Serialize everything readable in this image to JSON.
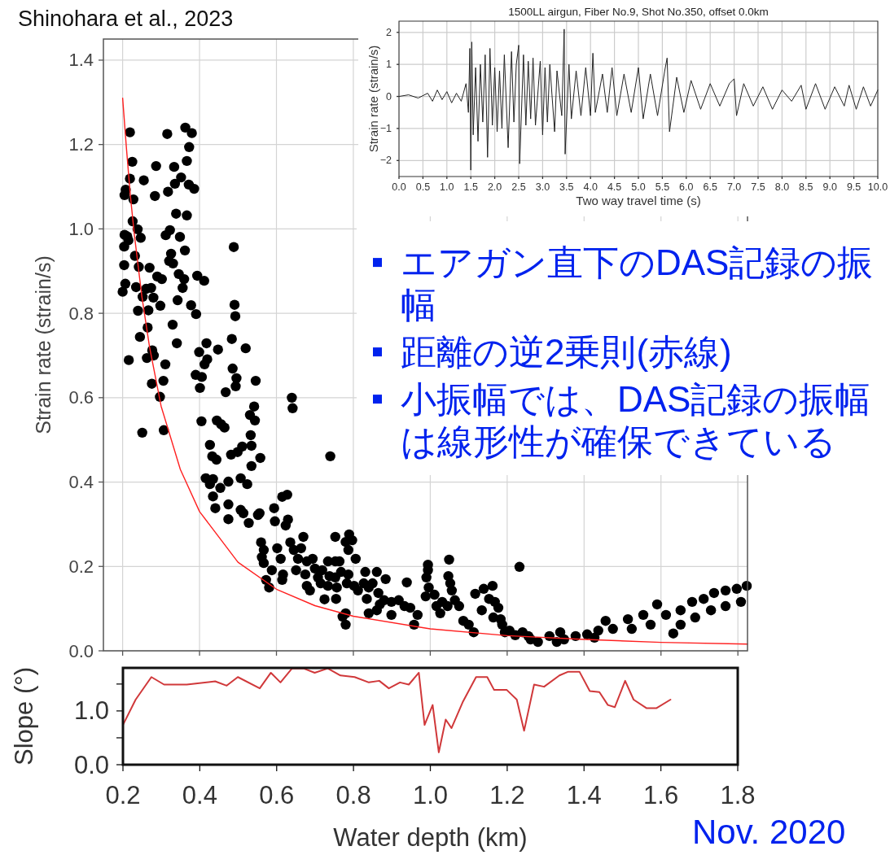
{
  "chart_data": [
    {
      "type": "scatter",
      "ylabel": "Strain rate (strain/s)",
      "xlim": [
        0.15,
        1.825
      ],
      "ylim": [
        0,
        1.45
      ],
      "xticks": [
        0.2,
        0.4,
        0.6,
        0.8,
        1,
        1.2,
        1.4,
        1.6,
        1.8
      ],
      "yticks": [
        {
          "value": 0,
          "label": "0.0"
        },
        0.2,
        0.4,
        0.6,
        0.8,
        {
          "value": 1,
          "label": "1.0"
        },
        1.2,
        1.4
      ],
      "tick_labels": "y",
      "grid": true,
      "annotations": [
        "Shinohara et al., 2023",
        "エアガン直下のDAS記録の振幅",
        "距離の逆2乗則(赤線)",
        "小振幅では、DAS記録の振幅は線形性が確保できている"
      ],
      "series": [
        {
          "marker": "circle",
          "color": "#000000",
          "x": [
            0.219,
            0.316,
            0.363,
            0.38,
            0.373,
            0.225,
            0.287,
            0.334,
            0.367,
            0.219,
            0.255,
            0.352,
            0.336,
            0.372,
            0.386,
            0.208,
            0.205,
            0.318,
            0.284,
            0.228,
            0.226,
            0.239,
            0.339,
            0.367,
            0.205,
            0.212,
            0.247,
            0.312,
            0.323,
            0.349,
            0.204,
            0.215,
            0.489,
            0.326,
            0.362,
            0.232,
            0.204,
            0.242,
            0.27,
            0.321,
            0.331,
            0.346,
            0.36,
            0.394,
            0.412,
            0.29,
            0.302,
            0.207,
            0.2,
            0.235,
            0.261,
            0.274,
            0.356,
            0.252,
            0.28,
            0.24,
            0.267,
            0.298,
            0.343,
            0.378,
            0.391,
            0.491,
            0.493,
            0.265,
            0.245,
            0.33,
            0.341,
            0.484,
            0.418,
            0.448,
            0.52,
            0.277,
            0.281,
            0.263,
            0.216,
            0.399,
            0.42,
            0.413,
            0.311,
            0.39,
            0.406,
            0.486,
            0.496,
            0.494,
            0.546,
            0.401,
            0.468,
            0.306,
            0.276,
            0.297,
            0.64,
            0.642,
            0.542,
            0.531,
            0.544,
            0.405,
            0.445,
            0.456,
            0.465,
            0.307,
            0.251,
            0.533,
            0.74,
            0.427,
            0.433,
            0.444,
            0.482,
            0.499,
            0.511,
            0.535,
            0.558,
            0.535,
            0.416,
            0.435,
            0.427,
            0.454,
            0.475,
            0.507,
            0.524,
            0.435,
            0.441,
            0.475,
            0.475,
            0.507,
            0.514,
            0.528,
            0.552,
            0.556,
            0.594,
            0.615,
            0.628,
            0.596,
            0.63,
            0.624,
            0.56,
            0.567,
            0.562,
            0.567,
            0.588,
            0.573,
            0.581,
            0.602,
            0.611,
            0.617,
            0.615,
            0.636,
            0.645,
            0.664,
            0.67,
            0.656,
            0.679,
            0.651,
            0.675,
            0.679,
            0.694,
            0.7,
            0.708,
            0.715,
            0.687,
            0.734,
            0.753,
            0.764,
            0.719,
            0.738,
            0.734,
            0.753,
            0.753,
            0.78,
            0.789,
            0.797,
            0.787,
            0.806,
            0.768,
            0.787,
            0.757,
            0.725,
            0.755,
            0.783,
            0.802,
            0.812,
            0.831,
            0.827,
            0.84,
            0.861,
            0.85,
            0.865,
            0.835,
            0.869,
            0.884,
            0.88,
            0.899,
            0.918,
            0.939,
            0.933,
            0.948,
            0.899,
            0.84,
            0.861,
            0.78,
            0.78,
            0.772,
            0.967,
            0.958,
            0.988,
            0.994,
            0.994,
            0.99,
            0.996,
            1.011,
            1.016,
            1.031,
            1.026,
            1.045,
            1.047,
            1.052,
            1.056,
            1.049,
            1.064,
            1.075,
            1.086,
            1.1,
            1.113,
            1.117,
            1.139,
            1.162,
            1.153,
            1.168,
            1.177,
            1.134,
            1.164,
            1.183,
            1.187,
            1.194,
            1.232,
            1.206,
            1.221,
            1.24,
            1.255,
            1.28,
            1.31,
            1.338,
            1.348,
            1.378,
            1.408,
            1.437,
            1.456,
            1.475,
            1.514,
            1.554,
            1.59,
            1.632,
            1.613,
            1.651,
            1.681,
            1.711,
            1.738,
            1.768,
            1.797,
            1.823,
            1.73,
            1.768,
            1.808,
            1.689,
            1.651,
            1.573,
            1.524,
            1.427,
            1.329,
            1.261
          ],
          "values": [
            1.229,
            1.225,
            1.24,
            1.227,
            1.194,
            1.159,
            1.149,
            1.147,
            1.161,
            1.119,
            1.115,
            1.122,
            1.107,
            1.105,
            1.095,
            1.093,
            1.08,
            1.088,
            1.078,
            1.07,
            1.018,
            0.999,
            1.036,
            1.032,
            0.986,
            0.982,
            0.979,
            0.985,
            0.997,
            0.981,
            0.958,
            0.973,
            0.957,
            0.941,
            0.949,
            0.936,
            0.914,
            0.91,
            0.908,
            0.924,
            0.918,
            0.893,
            0.881,
            0.889,
            0.877,
            0.887,
            0.881,
            0.87,
            0.851,
            0.862,
            0.858,
            0.86,
            0.86,
            0.839,
            0.837,
            0.806,
            0.807,
            0.818,
            0.831,
            0.819,
            0.798,
            0.82,
            0.793,
            0.766,
            0.744,
            0.773,
            0.729,
            0.739,
            0.729,
            0.714,
            0.717,
            0.712,
            0.7,
            0.694,
            0.689,
            0.708,
            0.691,
            0.679,
            0.679,
            0.654,
            0.649,
            0.669,
            0.646,
            0.627,
            0.64,
            0.623,
            0.613,
            0.64,
            0.633,
            0.602,
            0.6,
            0.575,
            0.579,
            0.559,
            0.546,
            0.544,
            0.546,
            0.537,
            0.529,
            0.523,
            0.517,
            0.511,
            0.461,
            0.488,
            0.461,
            0.453,
            0.465,
            0.471,
            0.484,
            0.486,
            0.457,
            0.438,
            0.409,
            0.407,
            0.395,
            0.386,
            0.401,
            0.409,
            0.395,
            0.366,
            0.338,
            0.347,
            0.312,
            0.334,
            0.326,
            0.303,
            0.322,
            0.326,
            0.338,
            0.365,
            0.37,
            0.307,
            0.311,
            0.297,
            0.257,
            0.239,
            0.222,
            0.208,
            0.191,
            0.168,
            0.15,
            0.243,
            0.218,
            0.181,
            0.168,
            0.257,
            0.239,
            0.243,
            0.27,
            0.218,
            0.212,
            0.191,
            0.181,
            0.154,
            0.218,
            0.195,
            0.174,
            0.16,
            0.143,
            0.212,
            0.212,
            0.212,
            0.191,
            0.177,
            0.154,
            0.174,
            0.27,
            0.258,
            0.276,
            0.262,
            0.239,
            0.218,
            0.187,
            0.181,
            0.15,
            0.122,
            0.123,
            0.16,
            0.154,
            0.143,
            0.187,
            0.16,
            0.15,
            0.187,
            0.16,
            0.137,
            0.123,
            0.11,
            0.17,
            0.12,
            0.116,
            0.12,
            0.162,
            0.106,
            0.102,
            0.085,
            0.089,
            0.096,
            0.089,
            0.062,
            0.081,
            0.085,
            0.062,
            0.129,
            0.204,
            0.191,
            0.174,
            0.15,
            0.133,
            0.106,
            0.116,
            0.089,
            0.106,
            0.177,
            0.16,
            0.143,
            0.216,
            0.12,
            0.106,
            0.071,
            0.062,
            0.044,
            0.135,
            0.147,
            0.154,
            0.123,
            0.116,
            0.102,
            0.096,
            0.079,
            0.075,
            0.062,
            0.044,
            0.199,
            0.048,
            0.037,
            0.044,
            0.035,
            0.021,
            0.035,
            0.044,
            0.027,
            0.035,
            0.039,
            0.048,
            0.071,
            0.052,
            0.075,
            0.085,
            0.11,
            0.041,
            0.085,
            0.096,
            0.116,
            0.123,
            0.137,
            0.143,
            0.147,
            0.154,
            0.096,
            0.106,
            0.116,
            0.079,
            0.062,
            0.062,
            0.052,
            0.031,
            0.021,
            0.027
          ]
        },
        {
          "type": "line",
          "color": "#ff2020",
          "x": [
            0.2,
            0.21,
            0.22,
            0.23,
            0.25,
            0.27,
            0.3,
            0.35,
            0.4,
            0.5,
            0.6,
            0.7,
            0.8,
            1.0,
            1.2,
            1.4,
            1.6,
            1.825
          ],
          "values": [
            1.31,
            1.19,
            1.08,
            0.99,
            0.84,
            0.72,
            0.58,
            0.43,
            0.33,
            0.21,
            0.146,
            0.107,
            0.082,
            0.052,
            0.036,
            0.027,
            0.02,
            0.016
          ]
        }
      ]
    },
    {
      "type": "line",
      "title": "1500LL airgun, Fiber No.9, Shot No.350, offset 0.0km",
      "xlabel": "Two way travel time (s)",
      "ylabel": "Strain rate (strain/s)",
      "xlim": [
        0,
        10
      ],
      "ylim": [
        -2.5,
        2.35
      ],
      "xticks": [
        {
          "value": 0,
          "label": "0.0"
        },
        0.5,
        {
          "value": 1,
          "label": "1.0"
        },
        1.5,
        {
          "value": 2,
          "label": "2.0"
        },
        2.5,
        {
          "value": 3,
          "label": "3.0"
        },
        3.5,
        {
          "value": 4,
          "label": "4.0"
        },
        4.5,
        {
          "value": 5,
          "label": "5.0"
        },
        5.5,
        {
          "value": 6,
          "label": "6.0"
        },
        6.5,
        {
          "value": 7,
          "label": "7.0"
        },
        7.5,
        {
          "value": 8,
          "label": "8.0"
        },
        8.5,
        {
          "value": 9,
          "label": "9.0"
        },
        9.5,
        {
          "value": 10,
          "label": "10.0"
        }
      ],
      "yticks": [
        {
          "value": -2,
          "label": "−2"
        },
        {
          "value": -1,
          "label": "−1"
        },
        0,
        1,
        2
      ],
      "grid": true,
      "series": [
        {
          "color": "#222222",
          "x": [
            0.0,
            0.2,
            0.4,
            0.6,
            0.7,
            0.8,
            0.9,
            1.0,
            1.1,
            1.2,
            1.3,
            1.4,
            1.45,
            1.48,
            1.5,
            1.52,
            1.55,
            1.6,
            1.65,
            1.7,
            1.75,
            1.8,
            1.85,
            1.9,
            1.95,
            2.0,
            2.05,
            2.1,
            2.15,
            2.2,
            2.28,
            2.35,
            2.4,
            2.45,
            2.5,
            2.52,
            2.6,
            2.65,
            2.7,
            2.75,
            2.8,
            2.85,
            2.95,
            3.0,
            3.05,
            3.1,
            3.15,
            3.25,
            3.3,
            3.4,
            3.45,
            3.47,
            3.55,
            3.6,
            3.7,
            3.8,
            3.9,
            4.0,
            4.05,
            4.1,
            4.25,
            4.35,
            4.45,
            4.55,
            4.7,
            4.85,
            5.0,
            5.1,
            5.25,
            5.4,
            5.55,
            5.6,
            5.65,
            5.8,
            5.95,
            6.1,
            6.3,
            6.5,
            6.7,
            6.9,
            7.0,
            7.05,
            7.2,
            7.4,
            7.6,
            7.8,
            8.0,
            8.2,
            8.4,
            8.5,
            8.7,
            8.9,
            9.1,
            9.3,
            9.4,
            9.55,
            9.7,
            9.85,
            10.0
          ],
          "values": [
            0,
            0.05,
            -0.05,
            0.1,
            -0.15,
            0.2,
            -0.1,
            0.15,
            -0.2,
            0.1,
            -0.15,
            0.4,
            -0.5,
            1.5,
            -2.3,
            1.7,
            -1.2,
            0.9,
            -1.4,
            1.0,
            -0.8,
            1.3,
            -1.9,
            1.5,
            -0.9,
            0.9,
            -1.1,
            0.8,
            -1.0,
            1.3,
            -1.6,
            1.4,
            -0.8,
            1.0,
            1.6,
            -2.1,
            1.3,
            -0.9,
            1.1,
            -0.7,
            1.2,
            -0.9,
            1.1,
            -1.2,
            0.9,
            -0.8,
            1.0,
            -1.1,
            0.8,
            -0.6,
            2.1,
            -1.8,
            1.0,
            -0.7,
            0.8,
            -0.6,
            0.9,
            -0.6,
            1.35,
            -0.5,
            0.7,
            -0.5,
            0.9,
            -0.6,
            0.7,
            -0.5,
            0.9,
            -0.7,
            0.7,
            -0.6,
            0.8,
            1.2,
            -1.1,
            0.6,
            -0.5,
            0.5,
            -0.4,
            0.4,
            -0.3,
            0.4,
            0.55,
            -0.6,
            0.4,
            -0.3,
            0.3,
            -0.4,
            0.2,
            -0.15,
            0.35,
            -0.4,
            0.4,
            -0.4,
            0.3,
            -0.3,
            0.35,
            -0.4,
            0.3,
            -0.3,
            0.2
          ]
        }
      ]
    },
    {
      "type": "line",
      "xlabel": "Water depth (km)",
      "ylabel": "Slope (°)",
      "xlim": [
        0.2,
        1.8
      ],
      "ylim": [
        0,
        1.8
      ],
      "xticks": [
        0.2,
        0.4,
        0.6,
        0.8,
        {
          "value": 1,
          "label": "1.0"
        },
        1.2,
        1.4,
        1.6,
        1.8
      ],
      "yticks": [
        {
          "value": 0,
          "label": "0.0"
        },
        {
          "value": 0.5,
          "label": null
        },
        {
          "value": 1,
          "label": "1.0"
        },
        {
          "value": 1.5,
          "label": null
        }
      ],
      "annotations": [
        "Nov. 2020"
      ],
      "series": [
        {
          "color": "#d0383a",
          "x": [
            0.2,
            0.233,
            0.274,
            0.307,
            0.366,
            0.44,
            0.47,
            0.499,
            0.556,
            0.585,
            0.61,
            0.64,
            0.67,
            0.699,
            0.733,
            0.766,
            0.803,
            0.84,
            0.867,
            0.892,
            0.921,
            0.944,
            0.97,
            0.985,
            1.006,
            1.022,
            1.04,
            1.055,
            1.084,
            1.119,
            1.148,
            1.166,
            1.199,
            1.225,
            1.244,
            1.27,
            1.296,
            1.336,
            1.359,
            1.388,
            1.415,
            1.44,
            1.462,
            1.48,
            1.507,
            1.529,
            1.563,
            1.588,
            1.625
          ],
          "values": [
            0.74,
            1.21,
            1.63,
            1.49,
            1.49,
            1.55,
            1.47,
            1.63,
            1.42,
            1.71,
            1.53,
            1.79,
            1.79,
            1.71,
            1.79,
            1.66,
            1.63,
            1.53,
            1.56,
            1.42,
            1.53,
            1.49,
            1.71,
            0.74,
            1.11,
            0.23,
            0.84,
            0.68,
            1.16,
            1.63,
            1.63,
            1.39,
            1.39,
            1.21,
            0.63,
            1.49,
            1.45,
            1.66,
            1.73,
            1.73,
            1.37,
            1.35,
            1.11,
            1.07,
            1.56,
            1.21,
            1.05,
            1.05,
            1.21
          ]
        }
      ]
    }
  ]
}
